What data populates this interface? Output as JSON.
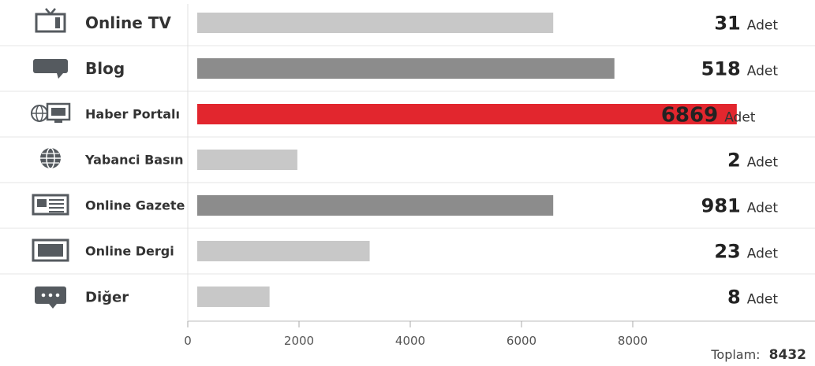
{
  "chart_data": {
    "type": "bar",
    "orientation": "horizontal",
    "categories": [
      "Online TV",
      "Blog",
      "Haber Portalı",
      "Yabanci Basın",
      "Online Gazete",
      "Online Dergi",
      "Diğer"
    ],
    "icons": [
      "tv-icon",
      "speech-bubble-icon",
      "news-portal-icon",
      "globe-icon",
      "newspaper-icon",
      "magazine-icon",
      "more-dots-icon"
    ],
    "bar_values": [
      6400,
      7500,
      9700,
      1800,
      6400,
      3100,
      1300
    ],
    "value_labels": [
      "31",
      "518",
      "6869",
      "2",
      "981",
      "23",
      "8"
    ],
    "unit_label": "Adet",
    "bar_colors": [
      "#c8c8c8",
      "#8c8c8c",
      "#e2262e",
      "#c8c8c8",
      "#8c8c8c",
      "#c8c8c8",
      "#c8c8c8"
    ],
    "highlight_index": 2,
    "xticks": [
      0,
      2000,
      4000,
      6000,
      8000
    ],
    "xtick_labels": [
      "0",
      "2000",
      "4000",
      "6000",
      "8000"
    ],
    "xlim": [
      0,
      10000
    ],
    "grid": false,
    "total_label": "Toplam:",
    "total_value": "8432"
  }
}
